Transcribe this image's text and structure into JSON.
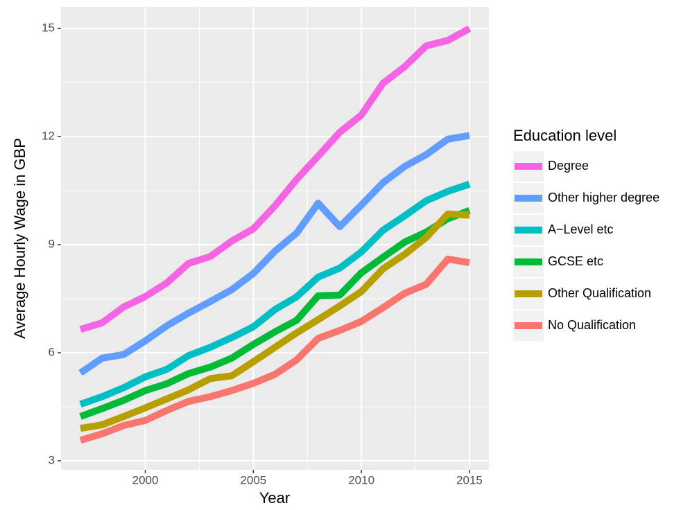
{
  "chart_data": {
    "type": "line",
    "x_label": "Year",
    "y_label": "Average Hourly Wage in GBP",
    "legend_title": "Education level",
    "legend": "right",
    "grid": true,
    "x": [
      1997,
      1998,
      1999,
      2000,
      2001,
      2002,
      2003,
      2004,
      2005,
      2006,
      2007,
      2008,
      2009,
      2010,
      2011,
      2012,
      2013,
      2014,
      2015
    ],
    "xlim": [
      1996.1,
      2015.9
    ],
    "xticks": [
      2000,
      2005,
      2010,
      2015
    ],
    "ylim": [
      2.75,
      15.6
    ],
    "yticks": [
      3,
      6,
      9,
      12,
      15
    ],
    "series": [
      {
        "name": "Degree",
        "color": "#f564e3",
        "values": [
          6.65,
          6.83,
          7.27,
          7.56,
          7.94,
          8.48,
          8.67,
          9.1,
          9.44,
          10.08,
          10.81,
          11.46,
          12.12,
          12.6,
          13.48,
          13.94,
          14.52,
          14.67,
          15.0
        ]
      },
      {
        "name": "Other higher degree",
        "color": "#619cff",
        "values": [
          5.44,
          5.85,
          5.95,
          6.33,
          6.75,
          7.1,
          7.42,
          7.75,
          8.2,
          8.82,
          9.32,
          10.15,
          9.5,
          10.1,
          10.72,
          11.17,
          11.5,
          11.93,
          12.03
        ]
      },
      {
        "name": "A−Level etc",
        "color": "#00bfc4",
        "values": [
          4.57,
          4.78,
          5.03,
          5.33,
          5.54,
          5.92,
          6.15,
          6.42,
          6.72,
          7.2,
          7.55,
          8.1,
          8.35,
          8.8,
          9.4,
          9.8,
          10.22,
          10.48,
          10.68
        ]
      },
      {
        "name": "GCSE etc",
        "color": "#00ba38",
        "values": [
          4.23,
          4.45,
          4.68,
          4.95,
          5.14,
          5.42,
          5.6,
          5.85,
          6.23,
          6.58,
          6.9,
          7.58,
          7.6,
          8.22,
          8.65,
          9.07,
          9.35,
          9.72,
          9.95
        ]
      },
      {
        "name": "Other Qualification",
        "color": "#b79f00",
        "values": [
          3.9,
          4.0,
          4.23,
          4.47,
          4.72,
          4.97,
          5.28,
          5.36,
          5.75,
          6.15,
          6.55,
          6.92,
          7.3,
          7.7,
          8.33,
          8.73,
          9.2,
          9.85,
          9.82
        ]
      },
      {
        "name": "No Qualification",
        "color": "#f8766d",
        "values": [
          3.57,
          3.75,
          3.98,
          4.12,
          4.4,
          4.65,
          4.78,
          4.95,
          5.15,
          5.4,
          5.8,
          6.4,
          6.62,
          6.87,
          7.25,
          7.65,
          7.9,
          8.6,
          8.5
        ]
      }
    ]
  }
}
